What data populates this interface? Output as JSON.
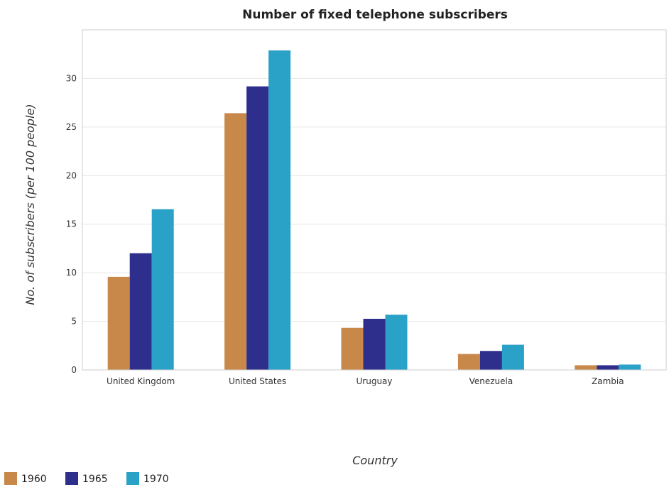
{
  "chart_data": {
    "type": "bar",
    "title": "Number of fixed telephone subscribers",
    "xlabel": "Country",
    "ylabel": "No. of subscribers (per 100 people)",
    "categories": [
      "United Kingdom",
      "United States",
      "Uruguay",
      "Venezuela",
      "Zambia"
    ],
    "series": [
      {
        "name": "1960",
        "color": "#c8884a",
        "values": [
          9.58,
          26.42,
          4.33,
          1.64,
          0.48
        ]
      },
      {
        "name": "1965",
        "color": "#2e2e8c",
        "values": [
          12.01,
          29.18,
          5.26,
          1.95,
          0.48
        ]
      },
      {
        "name": "1970",
        "color": "#2aa1c7",
        "values": [
          16.54,
          32.88,
          5.68,
          2.59,
          0.55
        ]
      }
    ],
    "ylim": [
      0,
      35
    ],
    "yticks": [
      0,
      5,
      10,
      15,
      20,
      25,
      30
    ],
    "grid": true,
    "legend_position": "bottom-left"
  }
}
